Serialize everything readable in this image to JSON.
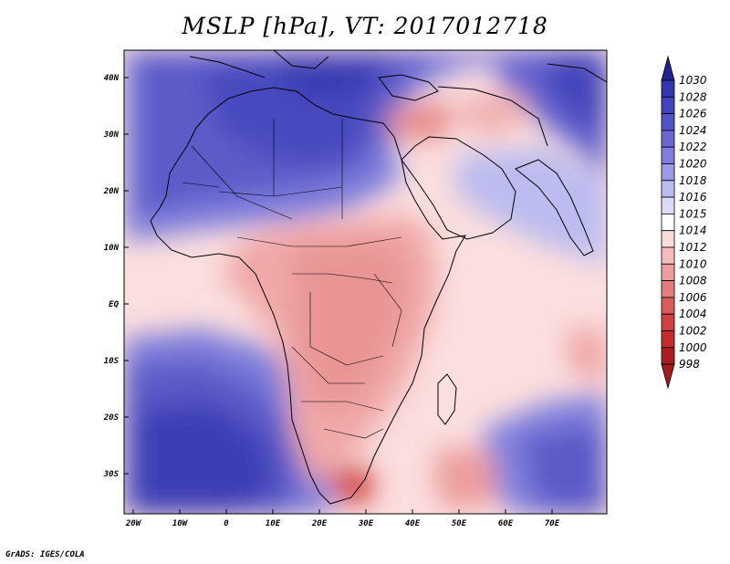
{
  "title": "MSLP [hPa], VT: 2017012718",
  "credit": "GrADS: IGES/COLA",
  "map": {
    "lon_range": [
      -25,
      80
    ],
    "lat_range": [
      -37,
      45
    ],
    "lon_ticks": [
      {
        "lon": -20,
        "label": "20W"
      },
      {
        "lon": -10,
        "label": "10W"
      },
      {
        "lon": 0,
        "label": "0"
      },
      {
        "lon": 10,
        "label": "10E"
      },
      {
        "lon": 20,
        "label": "20E"
      },
      {
        "lon": 30,
        "label": "30E"
      },
      {
        "lon": 40,
        "label": "40E"
      },
      {
        "lon": 50,
        "label": "50E"
      },
      {
        "lon": 60,
        "label": "60E"
      },
      {
        "lon": 70,
        "label": "70E"
      }
    ],
    "lat_ticks": [
      {
        "lat": 40,
        "label": "40N"
      },
      {
        "lat": 30,
        "label": "30N"
      },
      {
        "lat": 20,
        "label": "20N"
      },
      {
        "lat": 10,
        "label": "10N"
      },
      {
        "lat": 0,
        "label": "EQ"
      },
      {
        "lat": -10,
        "label": "10S"
      },
      {
        "lat": -20,
        "label": "20S"
      },
      {
        "lat": -30,
        "label": "30S"
      }
    ]
  },
  "colorbar": {
    "levels": [
      "1030",
      "1028",
      "1026",
      "1024",
      "1022",
      "1020",
      "1018",
      "1016",
      "1015",
      "1014",
      "1012",
      "1010",
      "1008",
      "1006",
      "1004",
      "1002",
      "1000",
      "998"
    ],
    "colors": [
      "#2a2a9e",
      "#3535b0",
      "#4343bd",
      "#5353c8",
      "#6767d2",
      "#7e7edc",
      "#9a9ae6",
      "#bcbcf0",
      "#dcdcf8",
      "#ffffff",
      "#fbdada",
      "#f4bcbc",
      "#ec9d9d",
      "#e37d7d",
      "#d95c5c",
      "#cf4141",
      "#c22c2c",
      "#ad1d1d"
    ],
    "top_color": "#232390",
    "bottom_color": "#a31b1b"
  }
}
